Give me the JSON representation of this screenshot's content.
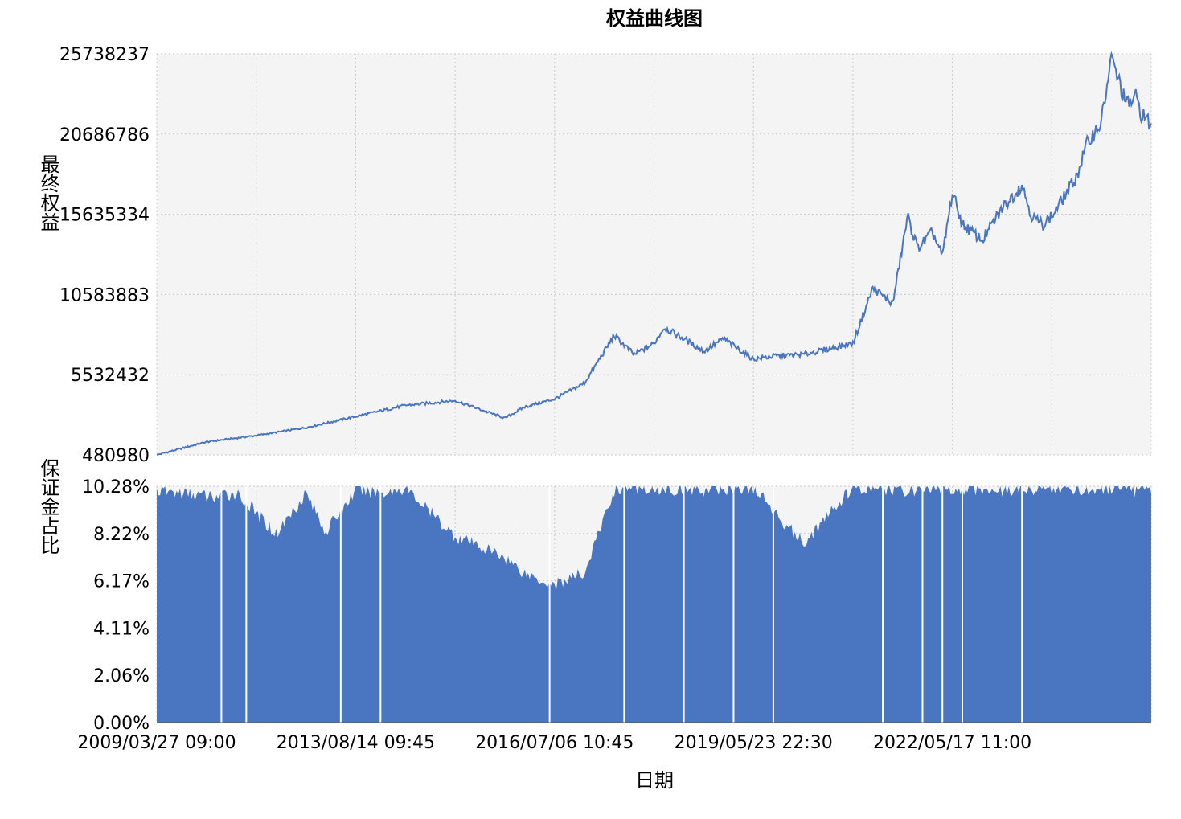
{
  "chart_data": [
    {
      "type": "line",
      "title": "权益曲线图",
      "ylabel": "最终权益",
      "ylim": [
        480980,
        25738237
      ],
      "yticks": [
        "25738237",
        "20686786",
        "15635334",
        "10583883",
        "5532432",
        "480980"
      ],
      "grid": true,
      "color": "#4a76c1",
      "x": [
        0,
        0.05,
        0.1,
        0.15,
        0.2,
        0.25,
        0.3,
        0.35,
        0.37,
        0.4,
        0.43,
        0.46,
        0.48,
        0.5,
        0.51,
        0.53,
        0.55,
        0.57,
        0.6,
        0.62,
        0.65,
        0.7,
        0.72,
        0.74,
        0.755,
        0.765,
        0.78,
        0.79,
        0.8,
        0.81,
        0.83,
        0.85,
        0.87,
        0.88,
        0.89,
        0.9,
        0.91,
        0.925,
        0.935,
        0.95,
        0.96,
        0.97,
        0.975,
        0.985,
        0.99,
        1.0
      ],
      "values": [
        480980,
        1300000,
        1700000,
        2200000,
        2900000,
        3600000,
        3900000,
        2800000,
        3500000,
        4000000,
        5000000,
        8000000,
        6800000,
        7500000,
        8500000,
        7800000,
        7000000,
        7800000,
        6500000,
        6700000,
        6800000,
        7500000,
        11000000,
        10000000,
        15500000,
        13500000,
        14500000,
        13000000,
        17000000,
        15000000,
        14000000,
        16000000,
        17500000,
        15500000,
        15000000,
        15500000,
        16500000,
        18000000,
        20000000,
        21500000,
        25500000,
        23500000,
        22500000,
        23000000,
        22000000,
        21200000
      ]
    },
    {
      "type": "bar",
      "ylabel": "保证金占比",
      "ylim": [
        0,
        10.28
      ],
      "yticks": [
        "10.28%",
        "8.22%",
        "6.17%",
        "4.11%",
        "2.06%",
        "0.00%"
      ],
      "unit": "%",
      "color": "#4a76c1",
      "xlabel": "日期",
      "xticks": [
        "2009/03/27 09:00",
        "2013/08/14 09:45",
        "2016/07/06 10:45",
        "2019/05/23 22:30",
        "2022/05/17 11:00"
      ],
      "x": [
        0,
        0.06,
        0.08,
        0.12,
        0.15,
        0.17,
        0.2,
        0.23,
        0.25,
        0.3,
        0.35,
        0.37,
        0.4,
        0.43,
        0.46,
        0.47,
        0.5,
        0.55,
        0.6,
        0.65,
        0.7,
        0.75,
        0.8,
        0.85,
        0.9,
        0.95,
        1.0
      ],
      "values": [
        10.1,
        9.8,
        10.0,
        8.2,
        10.0,
        8.3,
        10.1,
        10.0,
        10.2,
        8.1,
        7.2,
        6.5,
        6.0,
        6.5,
        10.1,
        10.2,
        10.2,
        10.1,
        10.2,
        7.8,
        10.2,
        10.1,
        10.2,
        10.1,
        10.2,
        10.1,
        10.1
      ],
      "gaps": [
        0.065,
        0.09,
        0.185,
        0.225,
        0.395,
        0.47,
        0.53,
        0.58,
        0.62,
        0.73,
        0.77,
        0.79,
        0.81,
        0.87
      ]
    }
  ]
}
